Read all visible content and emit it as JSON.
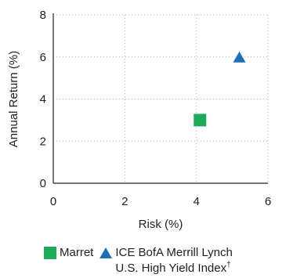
{
  "chart_data": {
    "type": "scatter",
    "title": "",
    "xlabel": "Risk (%)",
    "ylabel": "Annual Return (%)",
    "xlim": [
      0,
      6
    ],
    "ylim": [
      0,
      8
    ],
    "x_ticks": [
      "0",
      "2",
      "4",
      "6"
    ],
    "y_ticks": [
      "0",
      "2",
      "4",
      "6",
      "8"
    ],
    "grid": true,
    "legend_position": "bottom",
    "series": [
      {
        "name": "Marret",
        "marker": "square",
        "color": "#1faa5a",
        "points": [
          {
            "x": 4.1,
            "y": 3.0
          }
        ]
      },
      {
        "name": "ICE BofA Merrill Lynch U.S. High Yield Index†",
        "marker": "triangle",
        "color": "#1f6fb5",
        "points": [
          {
            "x": 5.2,
            "y": 6.0
          }
        ]
      }
    ]
  },
  "legend": {
    "marret_label": "Marret",
    "index_label_line1": "ICE BofA Merrill Lynch",
    "index_label_line2": "U.S. High Yield Index",
    "index_label_sup": "†"
  }
}
